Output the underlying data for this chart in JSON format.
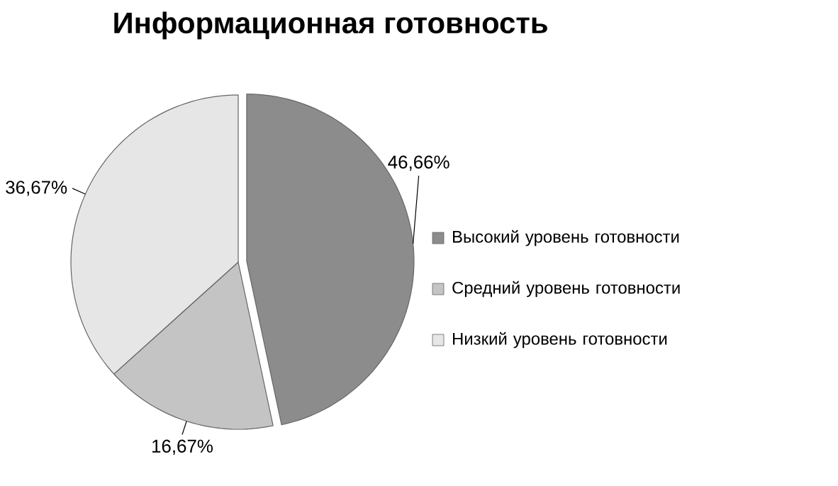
{
  "chart_data": {
    "type": "pie",
    "title": "Информационная готовность",
    "categories": [
      "Высокий уровень готовности",
      "Средний уровень готовности",
      "Низкий уровень готовности"
    ],
    "values": [
      46.66,
      16.67,
      36.67
    ],
    "value_labels": [
      "46,66%",
      "16,67%",
      "36,67%"
    ],
    "colors": [
      "#8c8c8c",
      "#c4c4c4",
      "#e6e6e6"
    ],
    "legend": "right"
  }
}
